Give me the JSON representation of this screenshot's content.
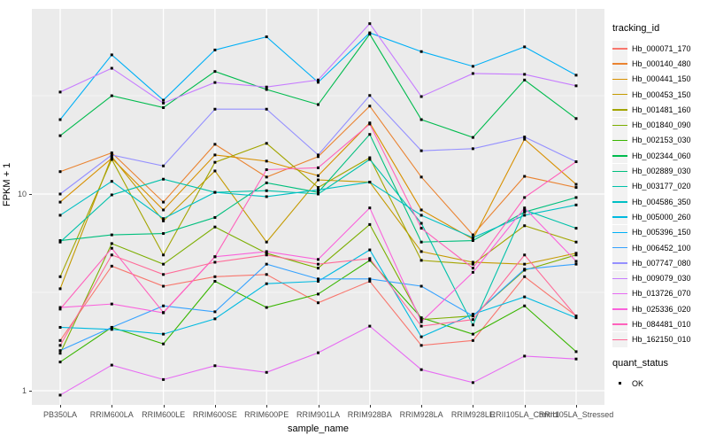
{
  "chart_data": {
    "type": "line",
    "title": "",
    "xlabel": "sample_name",
    "ylabel": "FPKM + 1",
    "legend_title": "tracking_id",
    "legend_position": "right",
    "y_scale": "log10",
    "ylim": [
      0.93,
      88
    ],
    "y_major_ticks": [
      10,
      1
    ],
    "y_minor_gridlines": [
      3.162,
      31.62
    ],
    "grid": true,
    "point_color": "#000000",
    "quant_status": {
      "title": "quant_status",
      "items": [
        "OK"
      ]
    },
    "categories": [
      "PB350LA",
      "RRIM600LA",
      "RRIM600LE",
      "RRIM600SE",
      "RRIM600PE",
      "RRIM901LA",
      "RRIM928BA",
      "RRIM928LA",
      "RRIM928LE",
      "RRII105LA_Control",
      "RRII105LA_Stressed"
    ],
    "series": [
      {
        "name": "Hb_000071_170",
        "color": "#F8766D",
        "values": [
          1.8,
          4.3,
          3.4,
          3.8,
          3.9,
          2.8,
          3.6,
          1.7,
          1.8,
          3.8,
          2.4
        ]
      },
      {
        "name": "Hb_000140_480",
        "color": "#EA8331",
        "values": [
          13,
          16.2,
          9.1,
          17.9,
          12.2,
          15.5,
          28,
          12.2,
          6.2,
          12.3,
          10.8
        ]
      },
      {
        "name": "Hb_000441_150",
        "color": "#D89000",
        "values": [
          9.1,
          15.2,
          8.3,
          15.8,
          14.7,
          12.4,
          23,
          8.3,
          5.9,
          19,
          11.2
        ]
      },
      {
        "name": "Hb_000453_150",
        "color": "#C49A00",
        "values": [
          3.3,
          15.5,
          7.3,
          13.1,
          5.7,
          11.8,
          11.5,
          5.1,
          4.5,
          4.4,
          5.0
        ]
      },
      {
        "name": "Hb_001481_160",
        "color": "#A3A500",
        "values": [
          3.8,
          15.0,
          4.9,
          14.5,
          18.1,
          10.8,
          15.3,
          4.6,
          4.4,
          6.9,
          5.7
        ]
      },
      {
        "name": "Hb_001840_090",
        "color": "#7CAE00",
        "values": [
          1.55,
          5.6,
          4.4,
          6.8,
          5.0,
          4.2,
          7.0,
          2.3,
          2.4,
          4.1,
          4.9
        ]
      },
      {
        "name": "Hb_002153_030",
        "color": "#39B600",
        "values": [
          1.4,
          2.1,
          1.73,
          3.6,
          2.65,
          3.1,
          4.6,
          2.35,
          1.94,
          2.7,
          1.58
        ]
      },
      {
        "name": "Hb_002344_060",
        "color": "#00BB4E",
        "values": [
          19.8,
          31.6,
          27.5,
          42,
          34,
          28.5,
          65,
          23.9,
          19.4,
          38,
          24.2
        ]
      },
      {
        "name": "Hb_002889_030",
        "color": "#00BF7D",
        "values": [
          5.8,
          6.2,
          6.3,
          7.6,
          11.4,
          10.2,
          20.1,
          5.7,
          5.8,
          8.1,
          9.6
        ]
      },
      {
        "name": "Hb_003177_020",
        "color": "#00C1A9",
        "values": [
          5.7,
          9.9,
          11.9,
          10.2,
          10.4,
          10.0,
          15.0,
          7.1,
          2.16,
          8.3,
          6.7
        ]
      },
      {
        "name": "Hb_004586_350",
        "color": "#00BFC4",
        "values": [
          7.8,
          11.6,
          7.5,
          10.2,
          9.7,
          10.5,
          11.5,
          7.8,
          6.0,
          7.8,
          8.8
        ]
      },
      {
        "name": "Hb_005000_260",
        "color": "#00BAE0",
        "values": [
          2.1,
          2.05,
          1.94,
          2.32,
          3.5,
          3.6,
          5.2,
          1.88,
          2.45,
          3.0,
          2.35
        ]
      },
      {
        "name": "Hb_005396_150",
        "color": "#00B0F6",
        "values": [
          23.9,
          51,
          30,
          54,
          63,
          37,
          66,
          53,
          44.6,
          56,
          40.2
        ]
      },
      {
        "name": "Hb_006452_100",
        "color": "#35A2FF",
        "values": [
          1.6,
          2.1,
          2.7,
          2.52,
          4.4,
          3.7,
          3.7,
          3.4,
          2.4,
          4.15,
          4.4
        ]
      },
      {
        "name": "Hb_007747_080",
        "color": "#9590FF",
        "values": [
          10,
          15.8,
          13.9,
          27,
          27,
          15.8,
          31.7,
          16.6,
          17,
          19.5,
          14.6
        ]
      },
      {
        "name": "Hb_009079_030",
        "color": "#C77CFF",
        "values": [
          33,
          43.6,
          29,
          36.9,
          35,
          38,
          73.5,
          31.3,
          41,
          40.6,
          35.5
        ]
      },
      {
        "name": "Hb_013726_070",
        "color": "#E76BF3",
        "values": [
          0.95,
          1.35,
          1.14,
          1.34,
          1.24,
          1.56,
          2.13,
          1.28,
          1.1,
          1.5,
          1.45
        ]
      },
      {
        "name": "Hb_025336_020",
        "color": "#FA62DB",
        "values": [
          2.65,
          2.76,
          2.49,
          4.8,
          5.1,
          4.65,
          8.5,
          2.24,
          4.0,
          8.5,
          4.55
        ]
      },
      {
        "name": "Hb_084481_010",
        "color": "#FF62BC",
        "values": [
          2.6,
          5.3,
          2.5,
          4.8,
          13.3,
          13.6,
          22.7,
          6.7,
          4.2,
          9.6,
          14.6
        ]
      },
      {
        "name": "Hb_162150_010",
        "color": "#FF6A98",
        "values": [
          1.7,
          4.9,
          3.9,
          4.5,
          4.9,
          4.4,
          4.7,
          2.13,
          2.3,
          4.9,
          2.39
        ]
      }
    ]
  }
}
